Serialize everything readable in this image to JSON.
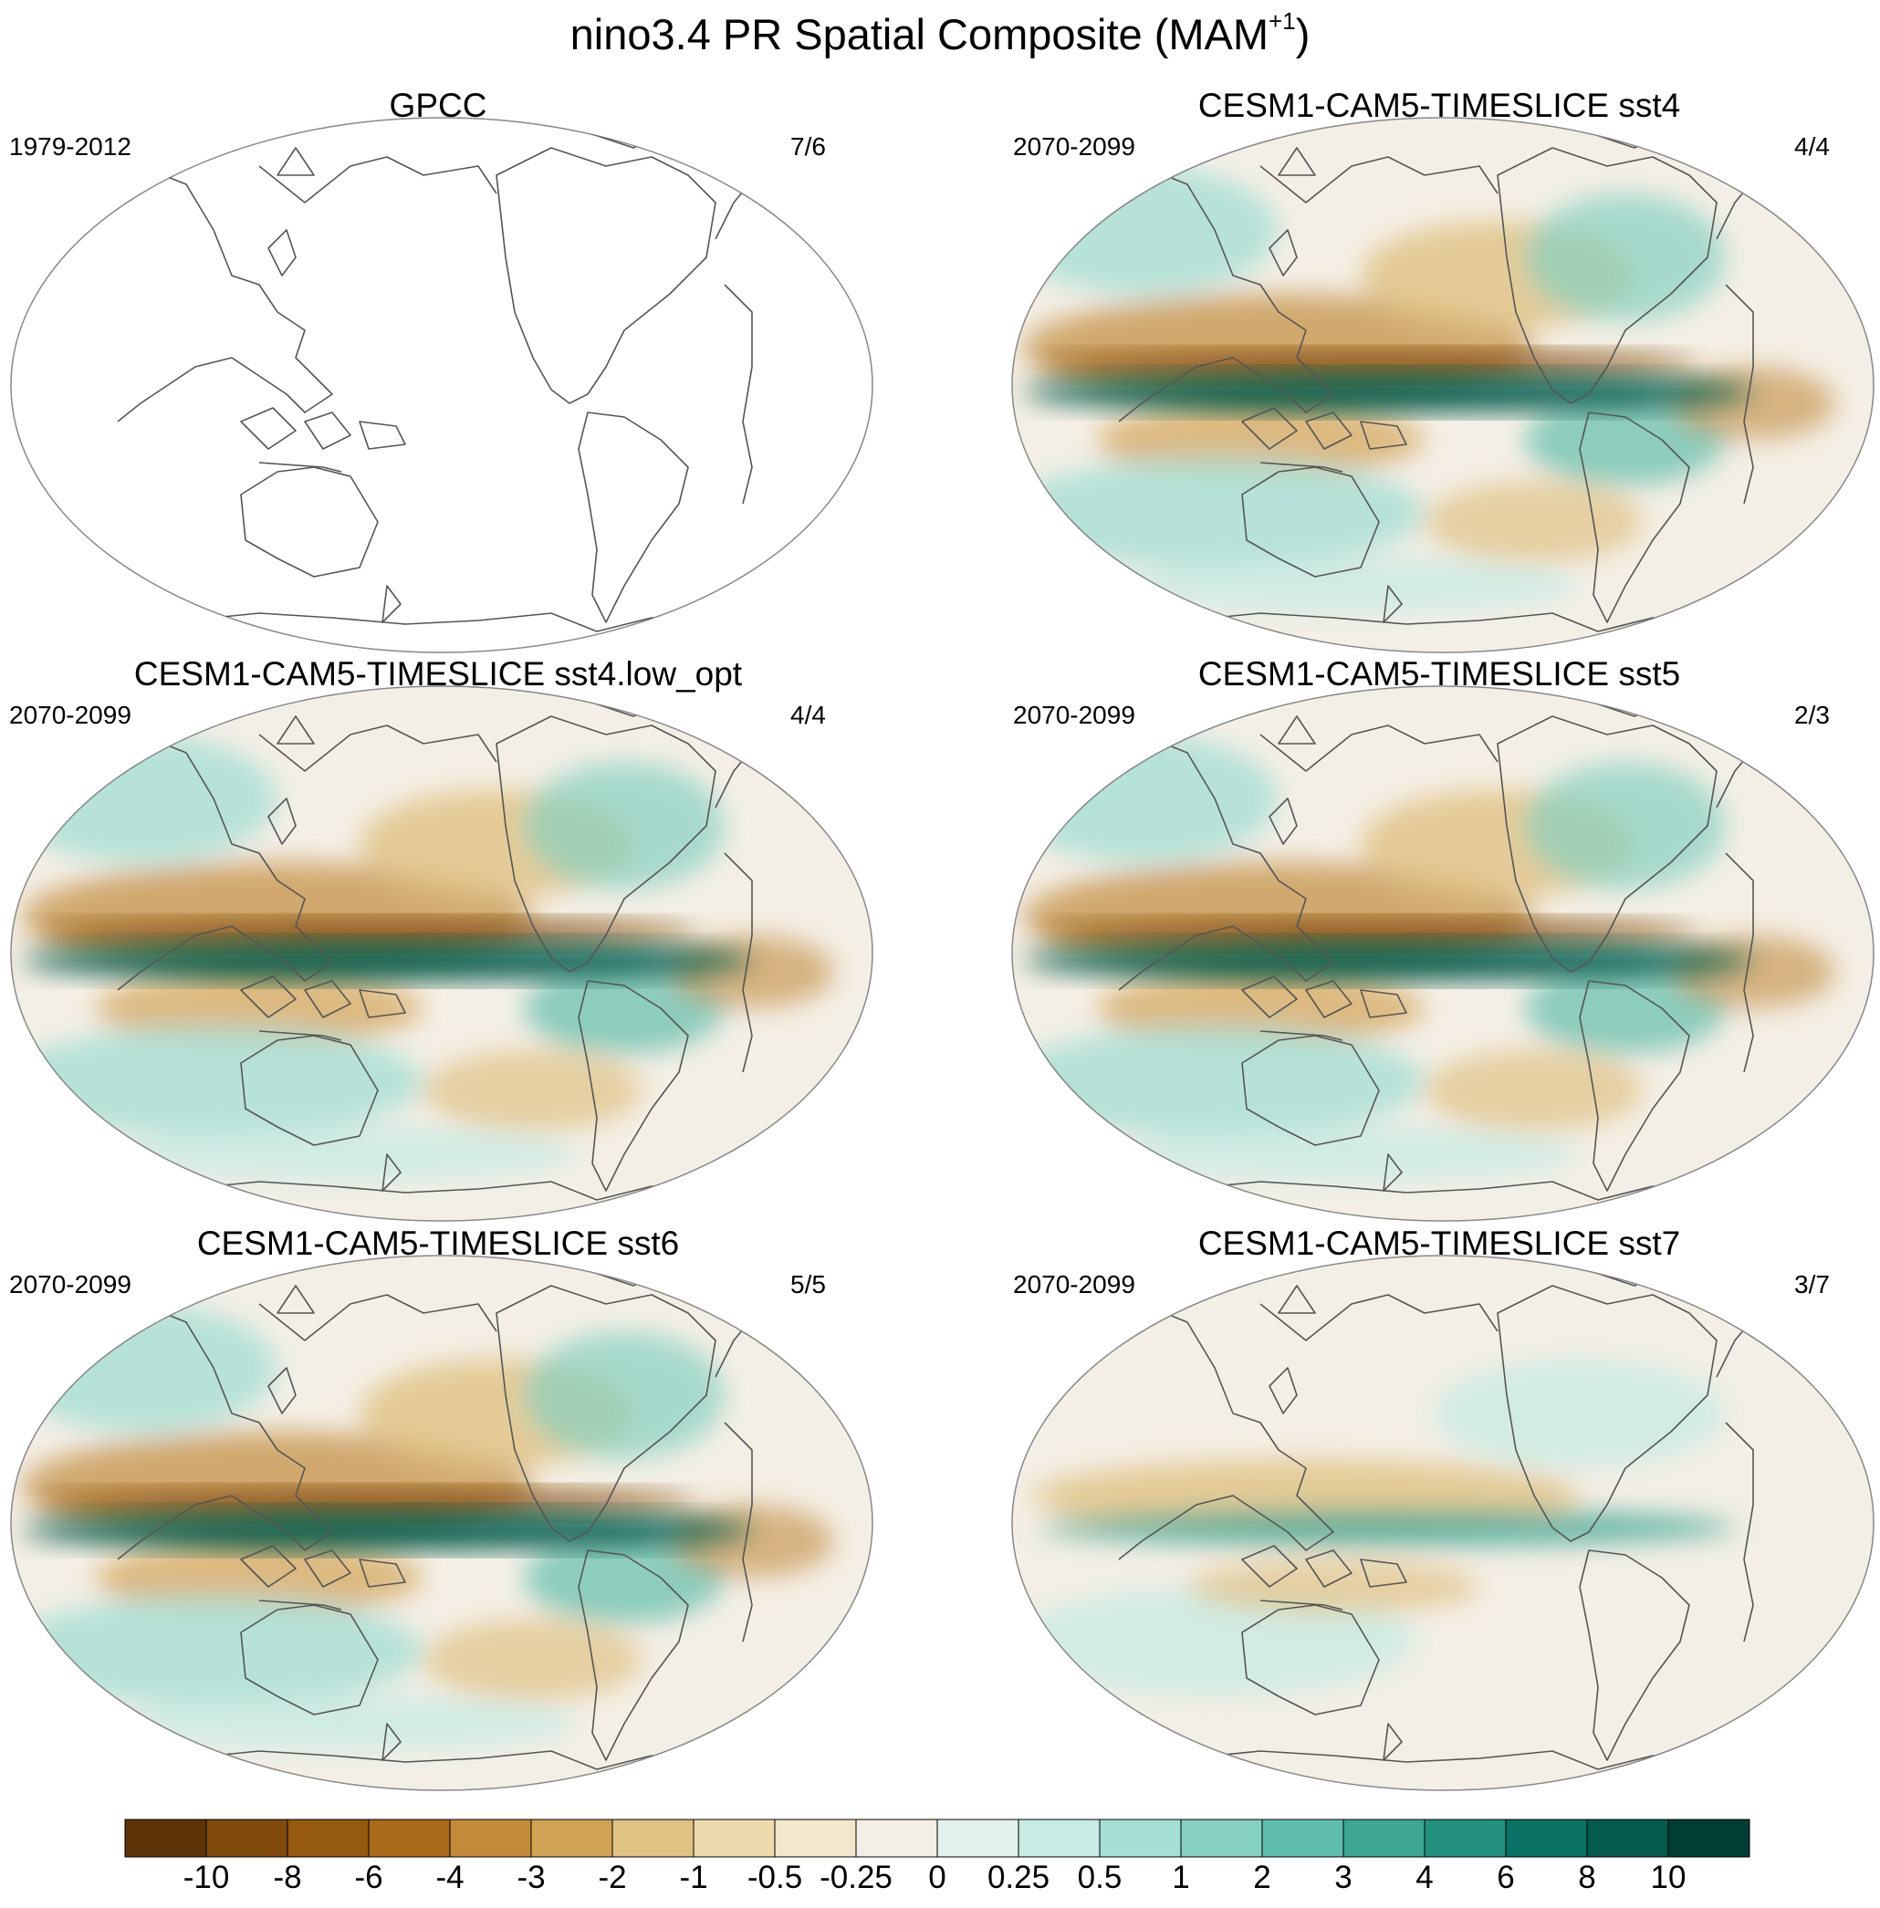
{
  "title": {
    "text": "nino3.4 PR Spatial Composite (MAM",
    "superscript": "+1",
    "suffix": ")"
  },
  "panels": [
    {
      "title": "GPCC",
      "period": "1979-2012",
      "count": "7/6",
      "filled": false
    },
    {
      "title": "CESM1-CAM5-TIMESLICE sst4",
      "period": "2070-2099",
      "count": "4/4",
      "filled": true
    },
    {
      "title": "CESM1-CAM5-TIMESLICE sst4.low_opt",
      "period": "2070-2099",
      "count": "4/4",
      "filled": true
    },
    {
      "title": "CESM1-CAM5-TIMESLICE sst5",
      "period": "2070-2099",
      "count": "2/3",
      "filled": true
    },
    {
      "title": "CESM1-CAM5-TIMESLICE sst6",
      "period": "2070-2099",
      "count": "5/5",
      "filled": true
    },
    {
      "title": "CESM1-CAM5-TIMESLICE sst7",
      "period": "2070-2099",
      "count": "3/7",
      "filled": true
    }
  ],
  "colorbar": {
    "labels": [
      "-10",
      "-8",
      "-6",
      "-4",
      "-3",
      "-2",
      "-1",
      "-0.5",
      "-0.25",
      "0",
      "0.25",
      "0.5",
      "1",
      "2",
      "3",
      "4",
      "6",
      "8",
      "10"
    ],
    "colors": [
      "#5c3408",
      "#7f4a0b",
      "#955910",
      "#aa6b1c",
      "#c28a3a",
      "#d1a355",
      "#e0c283",
      "#eddaad",
      "#f3e8cd",
      "#f4efe6",
      "#e3f2ee",
      "#c8ebe3",
      "#a6dfd4",
      "#85d0c1",
      "#5fbdab",
      "#3fa693",
      "#23907d",
      "#0a7263",
      "#045a4c",
      "#003d32"
    ]
  }
}
